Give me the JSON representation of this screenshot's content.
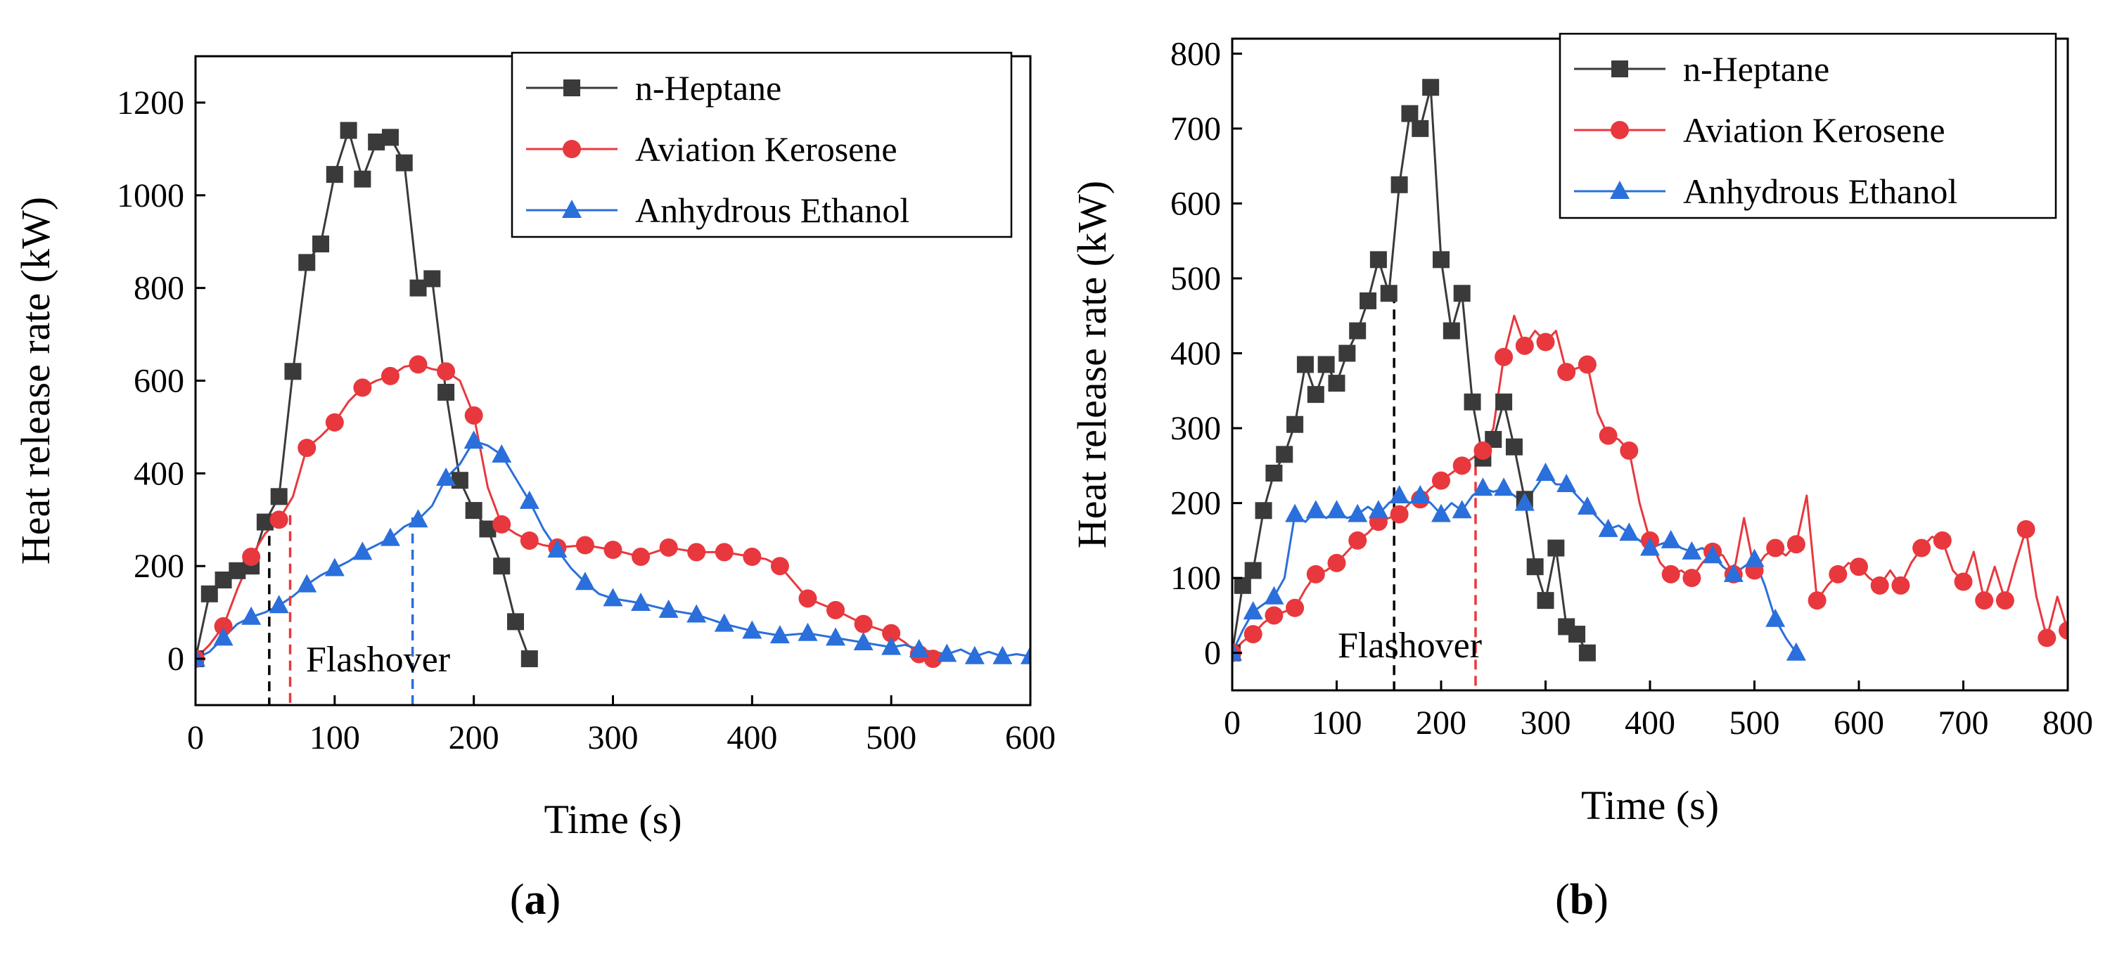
{
  "chart_data": [
    {
      "type": "line",
      "panel_label": "(a)",
      "panel_letter": "a",
      "xlabel": "Time (s)",
      "ylabel": "Heat release rate (kW)",
      "xlim": [
        0,
        600
      ],
      "ylim": [
        -100,
        1300
      ],
      "xticks": [
        0,
        100,
        200,
        300,
        400,
        500,
        600
      ],
      "yticks": [
        0,
        200,
        400,
        600,
        800,
        1000,
        1200
      ],
      "grid": false,
      "legend_position": "top-right",
      "annotation": "Flashover",
      "flashover_lines": [
        {
          "x": 53,
          "y": 300,
          "color": "#000000"
        },
        {
          "x": 68,
          "y": 310,
          "color": "#e8383d"
        },
        {
          "x": 156,
          "y": 305,
          "color": "#2a6fdb"
        }
      ],
      "series": [
        {
          "name": "n-Heptane",
          "color": "#3a3a3a",
          "marker": "square",
          "x": [
            0,
            10,
            20,
            30,
            40,
            50,
            60,
            70,
            80,
            90,
            100,
            110,
            120,
            130,
            140,
            150,
            160,
            170,
            180,
            190,
            200,
            210,
            220,
            230,
            240
          ],
          "y": [
            0,
            140,
            170,
            190,
            200,
            295,
            350,
            620,
            855,
            895,
            1045,
            1140,
            1035,
            1115,
            1125,
            1070,
            800,
            820,
            575,
            385,
            320,
            280,
            200,
            80,
            0
          ]
        },
        {
          "name": "Aviation Kerosene",
          "color": "#e8383d",
          "marker": "circle",
          "x": [
            0,
            20,
            40,
            60,
            80,
            100,
            120,
            140,
            160,
            180,
            200,
            220,
            240,
            260,
            280,
            300,
            320,
            340,
            360,
            380,
            400,
            420,
            440,
            460,
            480,
            500,
            520,
            530
          ],
          "y": [
            0,
            70,
            220,
            300,
            455,
            510,
            585,
            610,
            635,
            620,
            525,
            290,
            255,
            240,
            245,
            235,
            220,
            240,
            230,
            230,
            220,
            200,
            130,
            105,
            75,
            55,
            10,
            0
          ],
          "line_x": [
            0,
            10,
            20,
            30,
            40,
            50,
            60,
            70,
            80,
            90,
            100,
            110,
            120,
            130,
            140,
            150,
            160,
            170,
            180,
            190,
            200,
            210,
            220,
            230,
            240,
            250,
            260,
            280,
            300,
            320,
            340,
            360,
            380,
            400,
            410,
            420,
            440,
            460,
            480,
            500,
            510,
            520,
            530
          ],
          "line_y": [
            0,
            30,
            70,
            150,
            220,
            270,
            300,
            350,
            455,
            480,
            510,
            555,
            585,
            600,
            610,
            630,
            635,
            625,
            620,
            600,
            525,
            370,
            290,
            270,
            255,
            245,
            240,
            245,
            235,
            220,
            240,
            230,
            230,
            220,
            215,
            200,
            130,
            105,
            75,
            55,
            35,
            10,
            0
          ]
        },
        {
          "name": "Anhydrous Ethanol",
          "color": "#2a6fdb",
          "marker": "triangle",
          "x": [
            0,
            20,
            40,
            60,
            80,
            100,
            120,
            140,
            160,
            180,
            200,
            220,
            240,
            260,
            280,
            300,
            320,
            340,
            360,
            380,
            400,
            420,
            440,
            460,
            480,
            500,
            520,
            540,
            560,
            580,
            600
          ],
          "y": [
            0,
            45,
            90,
            115,
            160,
            195,
            230,
            260,
            300,
            390,
            470,
            440,
            340,
            235,
            165,
            130,
            120,
            105,
            95,
            75,
            60,
            50,
            55,
            45,
            35,
            25,
            20,
            10,
            5,
            5,
            5
          ],
          "line_x": [
            0,
            10,
            20,
            30,
            40,
            50,
            60,
            70,
            80,
            90,
            100,
            110,
            120,
            130,
            140,
            150,
            160,
            170,
            180,
            190,
            200,
            210,
            220,
            230,
            240,
            250,
            260,
            270,
            280,
            290,
            300,
            320,
            340,
            360,
            380,
            400,
            420,
            440,
            460,
            480,
            500,
            510,
            520,
            530,
            540,
            550,
            560,
            570,
            580,
            590,
            600
          ],
          "line_y": [
            0,
            15,
            45,
            75,
            90,
            100,
            115,
            135,
            160,
            180,
            195,
            210,
            230,
            245,
            260,
            285,
            300,
            330,
            390,
            420,
            470,
            460,
            440,
            390,
            340,
            280,
            235,
            195,
            165,
            140,
            130,
            120,
            105,
            95,
            75,
            60,
            50,
            55,
            45,
            35,
            25,
            30,
            20,
            15,
            10,
            20,
            5,
            15,
            5,
            10,
            5
          ]
        }
      ]
    },
    {
      "type": "line",
      "panel_label": "(b)",
      "panel_letter": "b",
      "xlabel": "Time (s)",
      "ylabel": "Heat release rate (kW)",
      "xlim": [
        0,
        800
      ],
      "ylim": [
        -50,
        820
      ],
      "xticks": [
        0,
        100,
        200,
        300,
        400,
        500,
        600,
        700,
        800
      ],
      "yticks": [
        0,
        100,
        200,
        300,
        400,
        500,
        600,
        700,
        800
      ],
      "grid": false,
      "legend_position": "top-right",
      "annotation": "Flashover",
      "flashover_lines": [
        {
          "x": 155,
          "y": 480,
          "color": "#000000"
        },
        {
          "x": 233,
          "y": 250,
          "color": "#e8383d"
        }
      ],
      "series": [
        {
          "name": "n-Heptane",
          "color": "#3a3a3a",
          "marker": "square",
          "x": [
            0,
            10,
            20,
            30,
            40,
            50,
            60,
            70,
            80,
            90,
            100,
            110,
            120,
            130,
            140,
            150,
            160,
            170,
            180,
            190,
            200,
            210,
            220,
            230,
            240,
            250,
            260,
            270,
            280,
            290,
            300,
            310,
            320,
            330,
            340
          ],
          "y": [
            0,
            90,
            110,
            190,
            240,
            265,
            305,
            385,
            345,
            385,
            360,
            400,
            430,
            470,
            525,
            480,
            625,
            720,
            700,
            755,
            525,
            430,
            480,
            335,
            260,
            285,
            335,
            275,
            205,
            115,
            70,
            140,
            35,
            25,
            0
          ]
        },
        {
          "name": "Aviation Kerosene",
          "color": "#e8383d",
          "marker": "circle",
          "x": [
            0,
            20,
            40,
            60,
            80,
            100,
            120,
            140,
            160,
            180,
            200,
            220,
            240,
            260,
            280,
            300,
            320,
            340,
            360,
            380,
            400,
            420,
            440,
            460,
            480,
            500,
            520,
            540,
            560,
            580,
            600,
            620,
            640,
            660,
            680,
            700,
            720,
            740,
            760,
            780,
            800
          ],
          "y": [
            0,
            25,
            50,
            60,
            105,
            120,
            150,
            175,
            185,
            205,
            230,
            250,
            270,
            395,
            410,
            415,
            375,
            385,
            290,
            270,
            150,
            105,
            100,
            135,
            105,
            110,
            140,
            145,
            70,
            105,
            115,
            90,
            90,
            140,
            150,
            95,
            70,
            70,
            165,
            20,
            30
          ],
          "line_x": [
            0,
            10,
            20,
            30,
            40,
            50,
            60,
            70,
            80,
            90,
            100,
            110,
            120,
            130,
            140,
            150,
            160,
            170,
            180,
            190,
            200,
            210,
            220,
            230,
            240,
            250,
            260,
            270,
            280,
            290,
            300,
            310,
            320,
            330,
            340,
            350,
            360,
            370,
            380,
            390,
            400,
            410,
            420,
            430,
            440,
            450,
            460,
            470,
            480,
            490,
            500,
            510,
            520,
            530,
            540,
            550,
            560,
            570,
            580,
            590,
            600,
            610,
            620,
            630,
            640,
            650,
            660,
            670,
            680,
            690,
            700,
            710,
            720,
            730,
            740,
            750,
            760,
            770,
            780,
            790,
            800
          ],
          "line_y": [
            0,
            15,
            25,
            40,
            50,
            55,
            60,
            85,
            105,
            110,
            120,
            135,
            150,
            160,
            175,
            180,
            185,
            200,
            205,
            220,
            230,
            240,
            250,
            260,
            270,
            300,
            395,
            450,
            410,
            430,
            415,
            430,
            375,
            380,
            385,
            320,
            290,
            285,
            270,
            200,
            150,
            120,
            105,
            110,
            100,
            120,
            135,
            130,
            105,
            180,
            110,
            130,
            140,
            130,
            145,
            210,
            70,
            90,
            105,
            120,
            115,
            100,
            90,
            110,
            90,
            120,
            140,
            155,
            150,
            110,
            95,
            135,
            70,
            115,
            70,
            120,
            165,
            75,
            20,
            75,
            30
          ]
        },
        {
          "name": "Anhydrous Ethanol",
          "color": "#2a6fdb",
          "marker": "triangle",
          "x": [
            0,
            20,
            40,
            60,
            80,
            100,
            120,
            140,
            160,
            180,
            200,
            220,
            240,
            260,
            280,
            300,
            320,
            340,
            360,
            380,
            400,
            420,
            440,
            460,
            480,
            500,
            520,
            540
          ],
          "y": [
            0,
            55,
            75,
            185,
            190,
            190,
            185,
            190,
            210,
            210,
            185,
            190,
            220,
            220,
            200,
            240,
            225,
            195,
            165,
            160,
            140,
            150,
            135,
            130,
            105,
            125,
            45,
            0
          ],
          "line_x": [
            0,
            10,
            20,
            30,
            40,
            50,
            60,
            70,
            80,
            90,
            100,
            110,
            120,
            130,
            140,
            150,
            160,
            170,
            180,
            190,
            200,
            210,
            220,
            230,
            240,
            250,
            260,
            270,
            280,
            290,
            300,
            310,
            320,
            330,
            340,
            350,
            360,
            370,
            380,
            390,
            400,
            410,
            420,
            430,
            440,
            450,
            460,
            470,
            480,
            490,
            500,
            510,
            520,
            530,
            540
          ],
          "line_y": [
            0,
            30,
            55,
            65,
            75,
            100,
            185,
            175,
            190,
            180,
            190,
            180,
            185,
            195,
            185,
            200,
            210,
            200,
            210,
            200,
            185,
            200,
            190,
            210,
            220,
            215,
            220,
            210,
            200,
            220,
            240,
            225,
            225,
            210,
            195,
            180,
            165,
            170,
            160,
            150,
            140,
            145,
            150,
            140,
            135,
            140,
            130,
            115,
            105,
            115,
            125,
            90,
            45,
            20,
            0
          ]
        }
      ]
    }
  ]
}
